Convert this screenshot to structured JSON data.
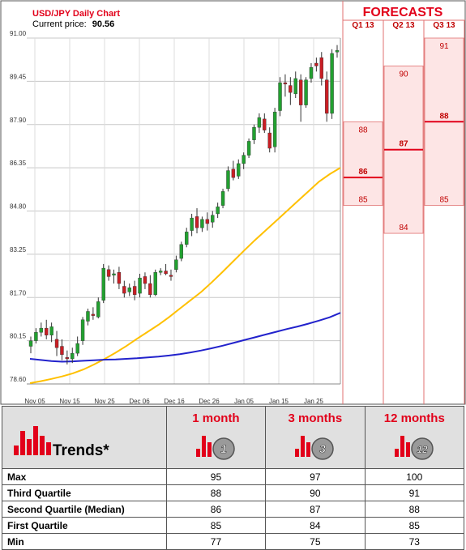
{
  "chart_data": {
    "type": "candlestick",
    "title": "USD/JPY Daily Chart",
    "current_price_label": "Current price:",
    "current_price": "90.56",
    "y_ticks": [
      "91.00",
      "89.45",
      "87.90",
      "86.35",
      "84.80",
      "83.25",
      "81.70",
      "80.15",
      "78.60"
    ],
    "ylim": [
      78.6,
      91.0
    ],
    "x_ticks": [
      "Nov 05",
      "Nov 15",
      "Nov 25",
      "Dec 06",
      "Dec 16",
      "Dec 26",
      "Jan 05",
      "Jan 15",
      "Jan 25"
    ],
    "candles": [
      {
        "o": 79.95,
        "h": 80.3,
        "l": 79.7,
        "c": 80.15
      },
      {
        "o": 80.15,
        "h": 80.6,
        "l": 80.05,
        "c": 80.45
      },
      {
        "o": 80.45,
        "h": 80.8,
        "l": 80.3,
        "c": 80.6
      },
      {
        "o": 80.6,
        "h": 80.9,
        "l": 80.2,
        "c": 80.35
      },
      {
        "o": 80.35,
        "h": 80.8,
        "l": 80.1,
        "c": 80.65
      },
      {
        "o": 80.2,
        "h": 80.5,
        "l": 79.6,
        "c": 79.9
      },
      {
        "o": 79.95,
        "h": 80.2,
        "l": 79.45,
        "c": 79.65
      },
      {
        "o": 79.55,
        "h": 79.8,
        "l": 79.3,
        "c": 79.5
      },
      {
        "o": 79.5,
        "h": 79.9,
        "l": 79.35,
        "c": 79.7
      },
      {
        "o": 79.7,
        "h": 80.3,
        "l": 79.6,
        "c": 80.05
      },
      {
        "o": 80.15,
        "h": 81.0,
        "l": 80.0,
        "c": 80.9
      },
      {
        "o": 80.85,
        "h": 81.3,
        "l": 80.7,
        "c": 81.2
      },
      {
        "o": 81.1,
        "h": 81.35,
        "l": 80.9,
        "c": 81.05
      },
      {
        "o": 81.0,
        "h": 81.7,
        "l": 80.95,
        "c": 81.55
      },
      {
        "o": 81.6,
        "h": 82.9,
        "l": 81.5,
        "c": 82.75
      },
      {
        "o": 82.7,
        "h": 82.85,
        "l": 82.3,
        "c": 82.45
      },
      {
        "o": 82.5,
        "h": 82.7,
        "l": 82.2,
        "c": 82.55
      },
      {
        "o": 82.6,
        "h": 82.8,
        "l": 82.0,
        "c": 82.2
      },
      {
        "o": 82.1,
        "h": 82.3,
        "l": 81.7,
        "c": 81.85
      },
      {
        "o": 81.9,
        "h": 82.2,
        "l": 81.75,
        "c": 82.05
      },
      {
        "o": 82.1,
        "h": 82.3,
        "l": 81.6,
        "c": 81.8
      },
      {
        "o": 81.85,
        "h": 82.55,
        "l": 81.7,
        "c": 82.4
      },
      {
        "o": 82.45,
        "h": 82.6,
        "l": 82.0,
        "c": 82.2
      },
      {
        "o": 82.2,
        "h": 82.5,
        "l": 81.7,
        "c": 81.8
      },
      {
        "o": 81.8,
        "h": 82.7,
        "l": 81.75,
        "c": 82.6
      },
      {
        "o": 82.6,
        "h": 82.75,
        "l": 82.5,
        "c": 82.65
      },
      {
        "o": 82.65,
        "h": 82.9,
        "l": 82.5,
        "c": 82.55
      },
      {
        "o": 82.5,
        "h": 82.7,
        "l": 82.3,
        "c": 82.45
      },
      {
        "o": 82.7,
        "h": 83.2,
        "l": 82.6,
        "c": 83.05
      },
      {
        "o": 83.1,
        "h": 83.7,
        "l": 83.0,
        "c": 83.6
      },
      {
        "o": 83.6,
        "h": 84.2,
        "l": 83.5,
        "c": 84.05
      },
      {
        "o": 84.1,
        "h": 84.7,
        "l": 83.9,
        "c": 84.55
      },
      {
        "o": 84.6,
        "h": 84.9,
        "l": 84.0,
        "c": 84.2
      },
      {
        "o": 84.2,
        "h": 84.6,
        "l": 84.05,
        "c": 84.5
      },
      {
        "o": 84.5,
        "h": 84.75,
        "l": 84.1,
        "c": 84.35
      },
      {
        "o": 84.4,
        "h": 84.8,
        "l": 84.2,
        "c": 84.65
      },
      {
        "o": 84.7,
        "h": 85.1,
        "l": 84.55,
        "c": 84.95
      },
      {
        "o": 85.0,
        "h": 85.6,
        "l": 84.9,
        "c": 85.5
      },
      {
        "o": 85.6,
        "h": 86.4,
        "l": 85.5,
        "c": 86.25
      },
      {
        "o": 86.3,
        "h": 86.6,
        "l": 85.9,
        "c": 86.0
      },
      {
        "o": 86.05,
        "h": 86.65,
        "l": 85.95,
        "c": 86.5
      },
      {
        "o": 86.5,
        "h": 86.9,
        "l": 86.3,
        "c": 86.8
      },
      {
        "o": 86.8,
        "h": 87.4,
        "l": 86.7,
        "c": 87.3
      },
      {
        "o": 87.35,
        "h": 87.9,
        "l": 87.2,
        "c": 87.8
      },
      {
        "o": 87.8,
        "h": 88.3,
        "l": 87.6,
        "c": 88.15
      },
      {
        "o": 88.1,
        "h": 88.3,
        "l": 87.6,
        "c": 87.7
      },
      {
        "o": 87.6,
        "h": 87.8,
        "l": 86.9,
        "c": 87.05
      },
      {
        "o": 87.1,
        "h": 88.5,
        "l": 86.9,
        "c": 88.35
      },
      {
        "o": 88.4,
        "h": 89.6,
        "l": 88.2,
        "c": 89.4
      },
      {
        "o": 89.4,
        "h": 89.7,
        "l": 88.9,
        "c": 89.35
      },
      {
        "o": 89.3,
        "h": 89.6,
        "l": 88.6,
        "c": 89.05
      },
      {
        "o": 89.0,
        "h": 89.8,
        "l": 88.85,
        "c": 89.55
      },
      {
        "o": 89.5,
        "h": 89.7,
        "l": 88.0,
        "c": 88.6
      },
      {
        "o": 88.6,
        "h": 89.6,
        "l": 88.5,
        "c": 89.5
      },
      {
        "o": 89.55,
        "h": 90.1,
        "l": 89.4,
        "c": 89.95
      },
      {
        "o": 90.1,
        "h": 90.3,
        "l": 89.8,
        "c": 90.0
      },
      {
        "o": 90.3,
        "h": 90.5,
        "l": 89.3,
        "c": 89.55
      },
      {
        "o": 89.5,
        "h": 89.8,
        "l": 88.0,
        "c": 88.3
      },
      {
        "o": 88.3,
        "h": 90.6,
        "l": 88.1,
        "c": 90.45
      },
      {
        "o": 90.5,
        "h": 90.75,
        "l": 90.3,
        "c": 90.56
      }
    ],
    "ma_short": [
      78.63,
      78.7,
      78.78,
      78.87,
      78.98,
      79.12,
      79.3,
      79.5,
      79.72,
      79.96,
      80.22,
      80.47,
      80.72,
      81.0,
      81.3,
      81.6,
      81.9,
      82.25,
      82.62,
      83.0,
      83.38,
      83.75,
      84.1,
      84.45,
      84.8,
      85.15,
      85.5,
      85.85,
      86.12,
      86.35
    ],
    "ma_long": [
      79.5,
      79.46,
      79.42,
      79.4,
      79.41,
      79.43,
      79.45,
      79.47,
      79.48,
      79.5,
      79.52,
      79.55,
      79.58,
      79.62,
      79.67,
      79.73,
      79.8,
      79.88,
      79.97,
      80.07,
      80.17,
      80.27,
      80.37,
      80.47,
      80.57,
      80.66,
      80.76,
      80.87,
      80.99,
      81.15
    ],
    "forecasts": {
      "title": "FORECASTS",
      "columns": [
        {
          "label": "Q1 13",
          "high": "88",
          "median": "86",
          "low": "85",
          "high_v": 88,
          "median_v": 86,
          "low_v": 85
        },
        {
          "label": "Q2 13",
          "high": "90",
          "median": "87",
          "low": "84",
          "high_v": 90,
          "median_v": 87,
          "low_v": 84
        },
        {
          "label": "Q3 13",
          "high": "91",
          "median": "88",
          "low": "85",
          "high_v": 91,
          "median_v": 88,
          "low_v": 85
        }
      ]
    },
    "colors": {
      "up": "#22a030",
      "down": "#c81e24",
      "ma_short": "#ffc000",
      "ma_long": "#2222cc",
      "accent": "#e2001a",
      "band": "#fde5e5"
    }
  },
  "trends": {
    "label": "Trends*",
    "horizons": [
      {
        "label": "1 month",
        "badge": "1"
      },
      {
        "label": "3 months",
        "badge": "3"
      },
      {
        "label": "12 months",
        "badge": "12"
      }
    ],
    "rows": [
      {
        "label": "Max",
        "values": [
          "95",
          "97",
          "100"
        ]
      },
      {
        "label": "Third Quartile",
        "values": [
          "88",
          "90",
          "91"
        ]
      },
      {
        "label": "Second Quartile (Median)",
        "values": [
          "86",
          "87",
          "88"
        ]
      },
      {
        "label": "First Quartile",
        "values": [
          "85",
          "84",
          "85"
        ]
      },
      {
        "label": "Min",
        "values": [
          "77",
          "75",
          "73"
        ]
      }
    ]
  }
}
